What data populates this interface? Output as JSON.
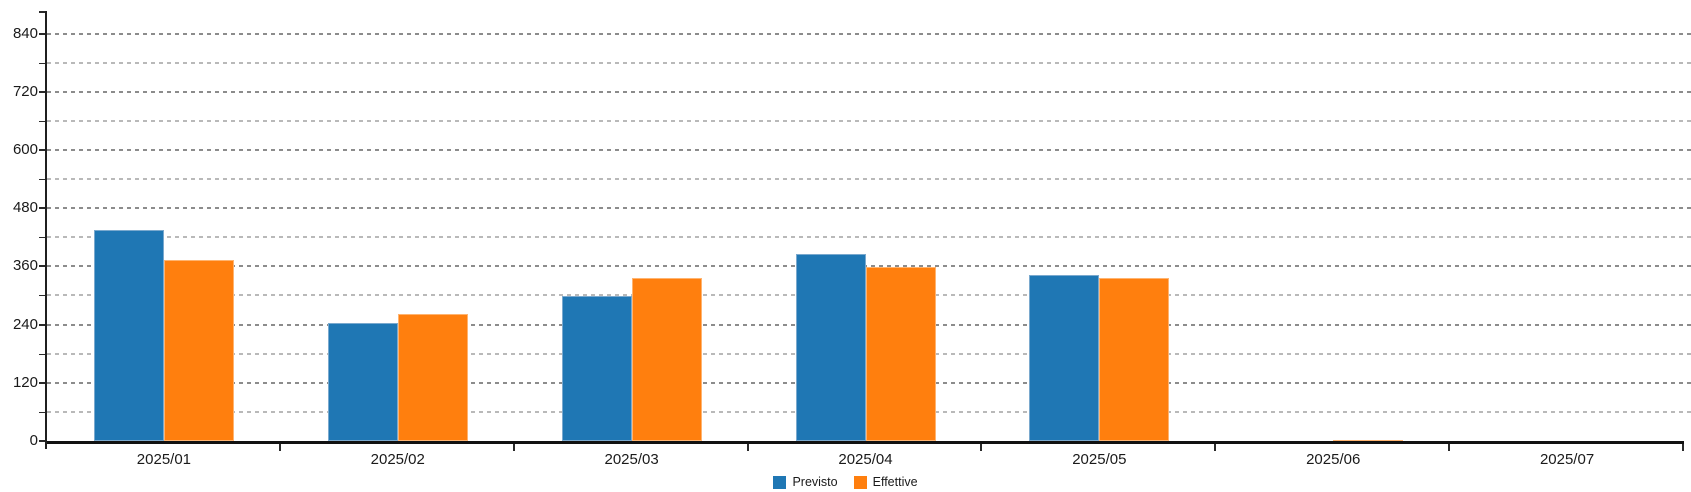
{
  "chart_data": {
    "type": "bar",
    "title": "",
    "xlabel": "",
    "ylabel": "",
    "categories": [
      "2025/01",
      "2025/02",
      "2025/03",
      "2025/04",
      "2025/05",
      "2025/06",
      "2025/07"
    ],
    "series": [
      {
        "name": "Previsto",
        "color": "#1f77b4",
        "border_color": "#7aa9ce",
        "values": [
          434,
          244,
          299,
          386,
          342,
          null,
          null
        ]
      },
      {
        "name": "Effettive",
        "color": "#ff7f0e",
        "border_color": "#ffb470",
        "values": [
          374,
          261,
          335,
          359,
          337,
          0,
          null
        ]
      }
    ],
    "ylim": [
      0,
      888
    ],
    "y_ticks_labeled": [
      0,
      120,
      240,
      360,
      480,
      600,
      720,
      840
    ],
    "y_ticks_minor": [
      60,
      180,
      300,
      420,
      540,
      660,
      780
    ],
    "grid": "horizontal-dashed",
    "legend_position": "bottom-center"
  },
  "colors": {
    "grid_major": "#8c8c8c",
    "grid_minor": "#b9b9b9",
    "axis": "#111111",
    "text": "#1a1a1a",
    "background": "#ffffff"
  }
}
